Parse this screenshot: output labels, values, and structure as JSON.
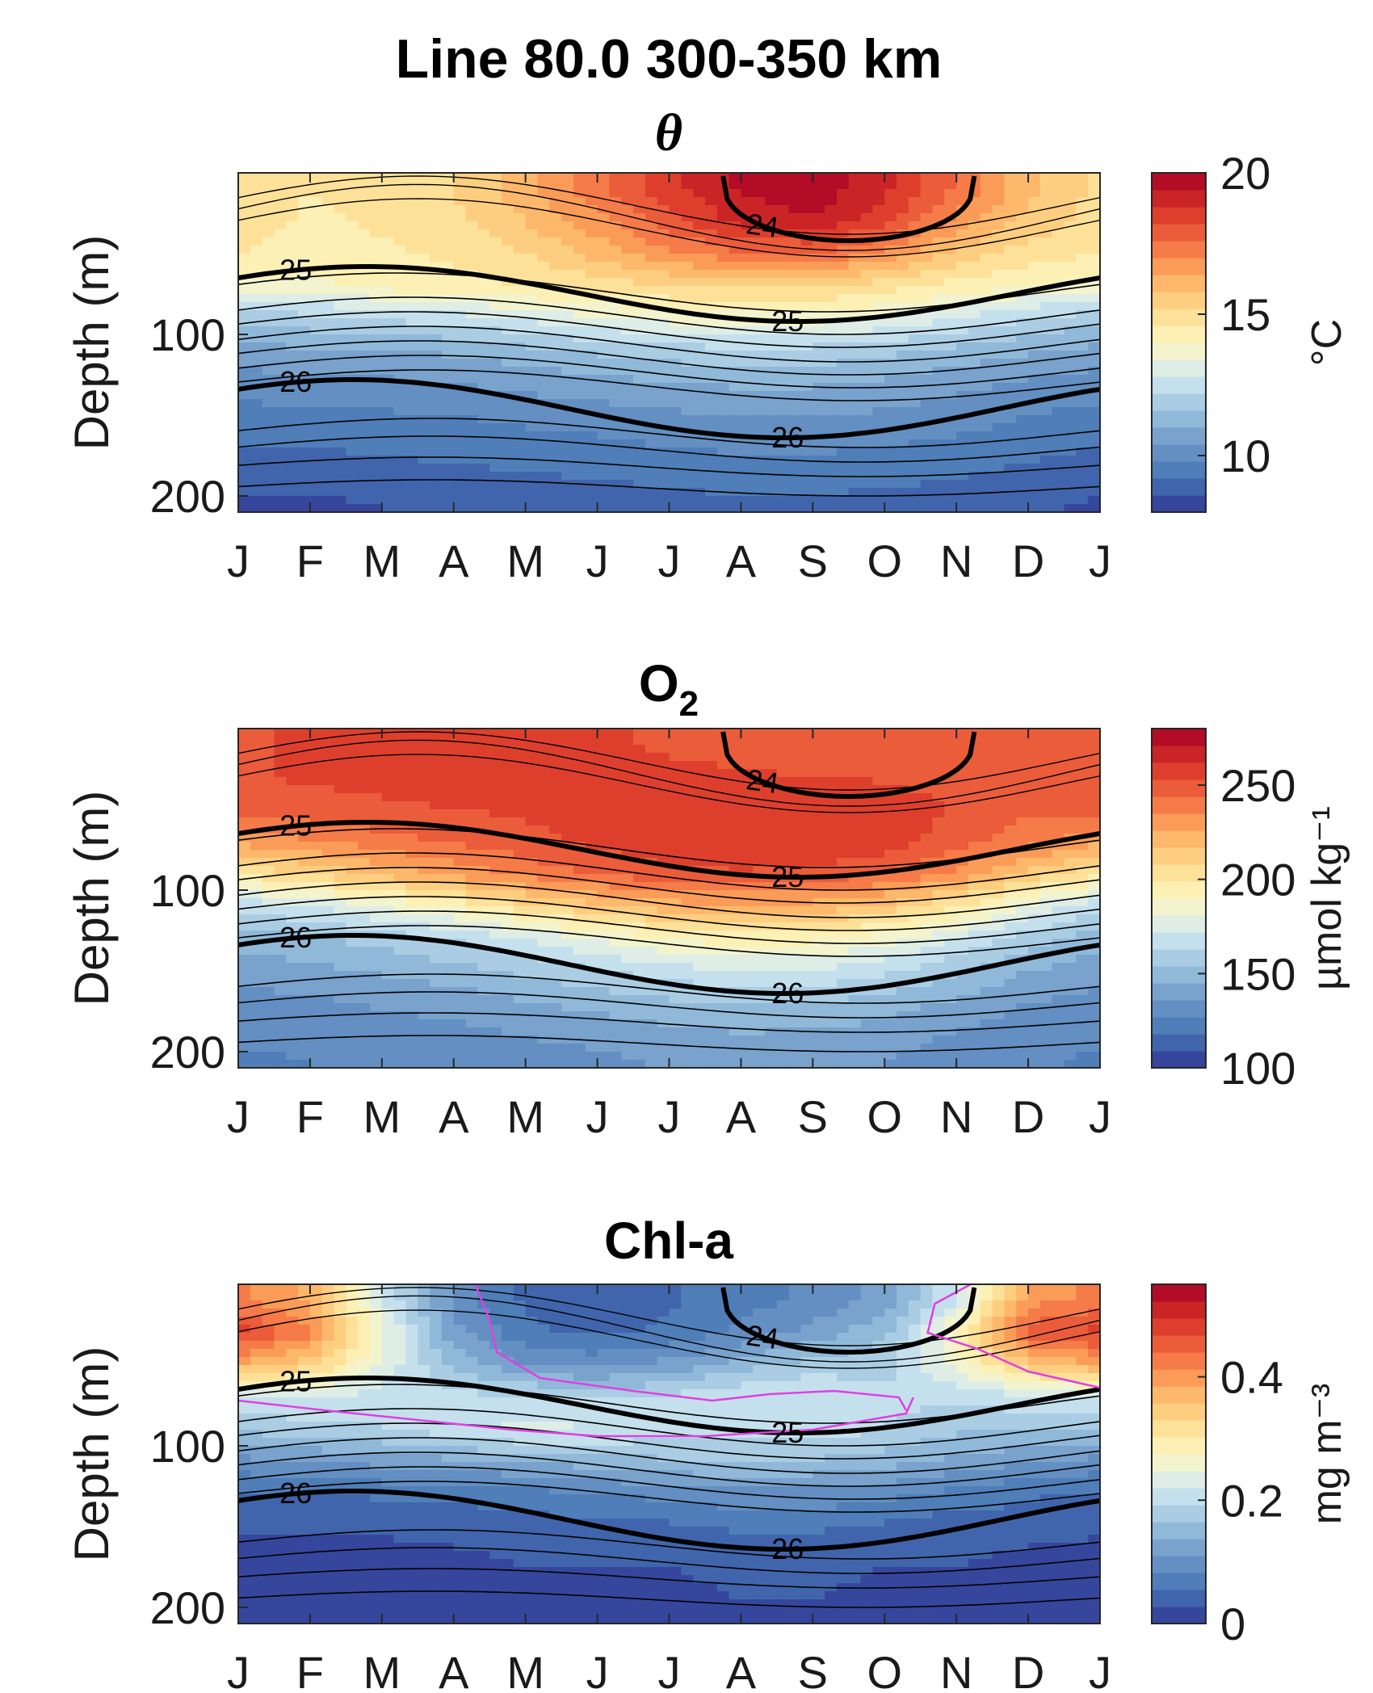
{
  "figure_title": "Line 80.0 300-350 km",
  "colors": {
    "colormap": [
      "#313695",
      "#4575b4",
      "#6d97c7",
      "#9cc4df",
      "#d3e9f2",
      "#fdf7c2",
      "#fed98b",
      "#fcad60",
      "#f26a40",
      "#d73027",
      "#a50026"
    ],
    "density_contours": "#000000",
    "highlight_contour": "#e040e0"
  },
  "months": [
    "J",
    "F",
    "M",
    "A",
    "M",
    "J",
    "J",
    "A",
    "S",
    "O",
    "N",
    "D",
    "J"
  ],
  "depth_axis_label": "Depth (m)",
  "depth_ticks": [
    "100",
    "200"
  ],
  "chart_data": [
    {
      "type": "heatmap",
      "title": "θ",
      "variable": "theta",
      "xlabel": "",
      "ylabel": "Depth (m)",
      "x_categories": [
        "J",
        "F",
        "M",
        "A",
        "M",
        "J",
        "J",
        "A",
        "S",
        "O",
        "N",
        "D",
        "J"
      ],
      "ylim": [
        0,
        210
      ],
      "colorbar": {
        "label": "°C",
        "range": [
          8,
          20
        ],
        "ticks": [
          "10",
          "15",
          "20"
        ]
      },
      "density_contour_labels": [
        "24",
        "25",
        "25",
        "26",
        "26"
      ],
      "rows": [
        {
          "depth": 10,
          "values": [
            15.0,
            14.6,
            14.8,
            15.2,
            16.2,
            17.5,
            18.6,
            19.5,
            19.8,
            19.0,
            17.5,
            16.0,
            15.0
          ]
        },
        {
          "depth": 30,
          "values": [
            14.9,
            14.5,
            14.7,
            15.0,
            15.8,
            16.8,
            18.0,
            19.0,
            19.3,
            18.4,
            16.8,
            15.6,
            14.9
          ]
        },
        {
          "depth": 50,
          "values": [
            14.6,
            14.3,
            14.5,
            14.7,
            15.2,
            16.0,
            16.8,
            17.5,
            17.6,
            16.8,
            15.6,
            14.9,
            14.6
          ]
        },
        {
          "depth": 70,
          "values": [
            13.8,
            13.8,
            14.2,
            14.4,
            14.6,
            14.9,
            15.2,
            15.4,
            15.4,
            14.9,
            14.4,
            14.0,
            13.8
          ]
        },
        {
          "depth": 90,
          "values": [
            11.8,
            12.0,
            12.3,
            12.5,
            12.9,
            13.3,
            13.6,
            13.8,
            13.7,
            13.3,
            12.8,
            12.2,
            11.8
          ]
        },
        {
          "depth": 110,
          "values": [
            10.8,
            10.9,
            11.0,
            11.1,
            11.4,
            11.7,
            11.9,
            12.1,
            12.0,
            11.8,
            11.4,
            11.1,
            10.8
          ]
        },
        {
          "depth": 130,
          "values": [
            10.1,
            10.2,
            10.3,
            10.4,
            10.6,
            10.8,
            11.0,
            11.1,
            11.1,
            10.9,
            10.6,
            10.3,
            10.1
          ]
        },
        {
          "depth": 150,
          "values": [
            9.6,
            9.6,
            9.7,
            9.8,
            10.0,
            10.1,
            10.3,
            10.4,
            10.4,
            10.3,
            10.1,
            9.8,
            9.6
          ]
        },
        {
          "depth": 170,
          "values": [
            9.2,
            9.2,
            9.3,
            9.4,
            9.5,
            9.6,
            9.8,
            9.9,
            9.9,
            9.8,
            9.6,
            9.4,
            9.2
          ]
        },
        {
          "depth": 190,
          "values": [
            8.8,
            8.8,
            8.9,
            9.0,
            9.1,
            9.2,
            9.3,
            9.4,
            9.4,
            9.3,
            9.2,
            9.0,
            8.8
          ]
        },
        {
          "depth": 205,
          "values": [
            8.5,
            8.5,
            8.6,
            8.7,
            8.8,
            8.9,
            9.0,
            9.1,
            9.1,
            9.0,
            8.9,
            8.7,
            8.5
          ]
        }
      ]
    },
    {
      "type": "heatmap",
      "title_main": "O",
      "title_sub": "2",
      "variable": "O2",
      "xlabel": "",
      "ylabel": "Depth (m)",
      "x_categories": [
        "J",
        "F",
        "M",
        "A",
        "M",
        "J",
        "J",
        "A",
        "S",
        "O",
        "N",
        "D",
        "J"
      ],
      "ylim": [
        0,
        210
      ],
      "colorbar": {
        "label": "µmol kg⁻¹",
        "range": [
          100,
          280
        ],
        "ticks": [
          "100",
          "150",
          "200",
          "250"
        ]
      },
      "density_contour_labels": [
        "24",
        "25",
        "25",
        "26",
        "26"
      ],
      "rows": [
        {
          "depth": 10,
          "values": [
            252,
            254,
            255,
            255,
            255,
            254,
            252,
            250,
            250,
            250,
            250,
            250,
            252
          ]
        },
        {
          "depth": 30,
          "values": [
            252,
            254,
            255,
            255,
            256,
            256,
            255,
            254,
            253,
            252,
            250,
            248,
            252
          ]
        },
        {
          "depth": 50,
          "values": [
            248,
            250,
            252,
            253,
            255,
            257,
            258,
            259,
            260,
            258,
            252,
            246,
            248
          ]
        },
        {
          "depth": 70,
          "values": [
            228,
            234,
            240,
            245,
            250,
            255,
            259,
            262,
            262,
            258,
            248,
            238,
            228
          ]
        },
        {
          "depth": 90,
          "values": [
            200,
            210,
            220,
            228,
            238,
            246,
            250,
            252,
            250,
            245,
            232,
            215,
            200
          ]
        },
        {
          "depth": 110,
          "values": [
            165,
            172,
            182,
            192,
            205,
            215,
            222,
            225,
            223,
            215,
            200,
            180,
            165
          ]
        },
        {
          "depth": 130,
          "values": [
            148,
            152,
            158,
            164,
            172,
            182,
            190,
            195,
            193,
            185,
            172,
            158,
            148
          ]
        },
        {
          "depth": 150,
          "values": [
            140,
            142,
            146,
            150,
            156,
            162,
            168,
            172,
            171,
            165,
            155,
            145,
            140
          ]
        },
        {
          "depth": 170,
          "values": [
            132,
            134,
            137,
            140,
            144,
            148,
            152,
            155,
            154,
            150,
            143,
            136,
            132
          ]
        },
        {
          "depth": 190,
          "values": [
            128,
            129,
            131,
            133,
            136,
            139,
            142,
            144,
            143,
            140,
            135,
            130,
            128
          ]
        },
        {
          "depth": 205,
          "values": [
            126,
            127,
            128,
            130,
            132,
            134,
            137,
            138,
            138,
            136,
            132,
            128,
            126
          ]
        }
      ]
    },
    {
      "type": "heatmap",
      "title": "Chl-a",
      "variable": "Chl-a",
      "xlabel": "",
      "ylabel": "Depth (m)",
      "x_categories": [
        "J",
        "F",
        "M",
        "A",
        "M",
        "J",
        "J",
        "A",
        "S",
        "O",
        "N",
        "D",
        "J"
      ],
      "ylim": [
        0,
        210
      ],
      "colorbar": {
        "label": "mg m⁻³",
        "range": [
          0,
          0.55
        ],
        "ticks": [
          "0",
          "0.2",
          "0.4"
        ]
      },
      "density_contour_labels": [
        "24",
        "25",
        "25",
        "26",
        "26"
      ],
      "rows": [
        {
          "depth": 10,
          "values": [
            0.42,
            0.38,
            0.22,
            0.1,
            0.05,
            0.04,
            0.05,
            0.07,
            0.09,
            0.12,
            0.22,
            0.4,
            0.42
          ]
        },
        {
          "depth": 30,
          "values": [
            0.48,
            0.42,
            0.26,
            0.12,
            0.06,
            0.05,
            0.06,
            0.09,
            0.12,
            0.16,
            0.28,
            0.46,
            0.48
          ]
        },
        {
          "depth": 50,
          "values": [
            0.38,
            0.34,
            0.24,
            0.16,
            0.11,
            0.1,
            0.12,
            0.15,
            0.18,
            0.18,
            0.26,
            0.35,
            0.38
          ]
        },
        {
          "depth": 70,
          "values": [
            0.22,
            0.22,
            0.21,
            0.2,
            0.2,
            0.19,
            0.2,
            0.22,
            0.22,
            0.2,
            0.2,
            0.21,
            0.22
          ]
        },
        {
          "depth": 90,
          "values": [
            0.17,
            0.18,
            0.19,
            0.21,
            0.23,
            0.22,
            0.21,
            0.2,
            0.21,
            0.19,
            0.17,
            0.17,
            0.17
          ]
        },
        {
          "depth": 110,
          "values": [
            0.1,
            0.11,
            0.12,
            0.13,
            0.14,
            0.15,
            0.16,
            0.17,
            0.16,
            0.15,
            0.13,
            0.11,
            0.1
          ]
        },
        {
          "depth": 130,
          "values": [
            0.05,
            0.05,
            0.06,
            0.06,
            0.07,
            0.08,
            0.09,
            0.1,
            0.1,
            0.09,
            0.07,
            0.06,
            0.05
          ]
        },
        {
          "depth": 150,
          "values": [
            0.03,
            0.03,
            0.03,
            0.04,
            0.04,
            0.05,
            0.05,
            0.06,
            0.06,
            0.05,
            0.04,
            0.04,
            0.03
          ]
        },
        {
          "depth": 170,
          "values": [
            0.02,
            0.02,
            0.02,
            0.02,
            0.03,
            0.03,
            0.03,
            0.04,
            0.04,
            0.03,
            0.03,
            0.02,
            0.02
          ]
        },
        {
          "depth": 190,
          "values": [
            0.02,
            0.02,
            0.02,
            0.02,
            0.02,
            0.02,
            0.02,
            0.03,
            0.03,
            0.02,
            0.02,
            0.02,
            0.02
          ]
        },
        {
          "depth": 205,
          "values": [
            0.02,
            0.02,
            0.02,
            0.02,
            0.02,
            0.02,
            0.02,
            0.02,
            0.02,
            0.02,
            0.02,
            0.02,
            0.02
          ]
        }
      ]
    }
  ]
}
